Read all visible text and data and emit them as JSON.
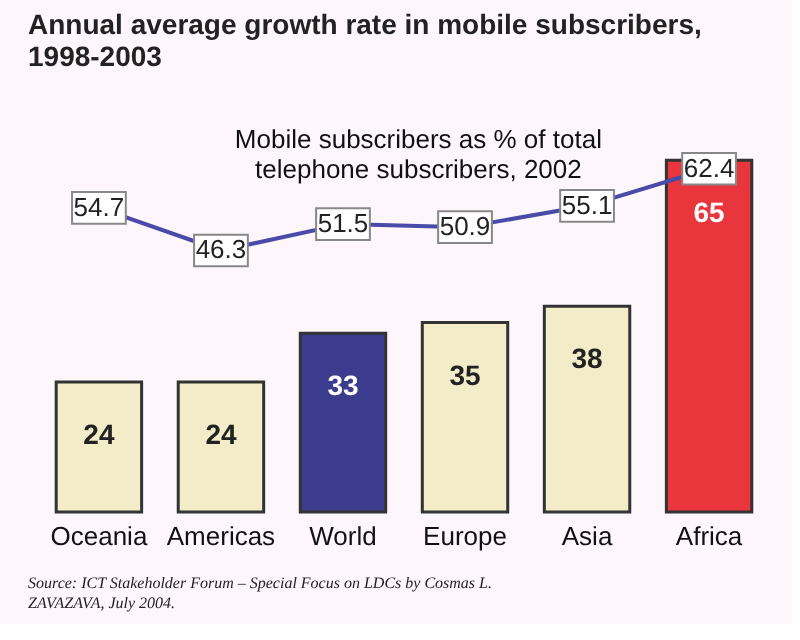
{
  "chart_data": {
    "type": "bar",
    "title": "Annual average growth rate in mobile subscribers, 1998-2003",
    "categories": [
      "Oceania",
      "Americas",
      "World",
      "Europe",
      "Asia",
      "Africa"
    ],
    "series": [
      {
        "values": [
          24,
          24,
          33,
          35,
          38,
          65
        ],
        "colors": [
          "#f3ecc8",
          "#f3ecc8",
          "#3c3c8e",
          "#f3ecc8",
          "#f3ecc8",
          "#e8363c"
        ]
      },
      {
        "type": "line",
        "axis": "y2",
        "marker": "square",
        "name": "Mobile subscribers as % of total telephone subscribers, 2002",
        "color": "#4a4aa8",
        "values": [
          54.7,
          46.3,
          51.5,
          50.9,
          55.1,
          62.4
        ]
      }
    ],
    "data_labels": true,
    "annotations": [
      "Source: ICT Stakeholder Forum – Special Focus on LDCs by Cosmas L. ZAVAZAVA, July 2004."
    ]
  }
}
